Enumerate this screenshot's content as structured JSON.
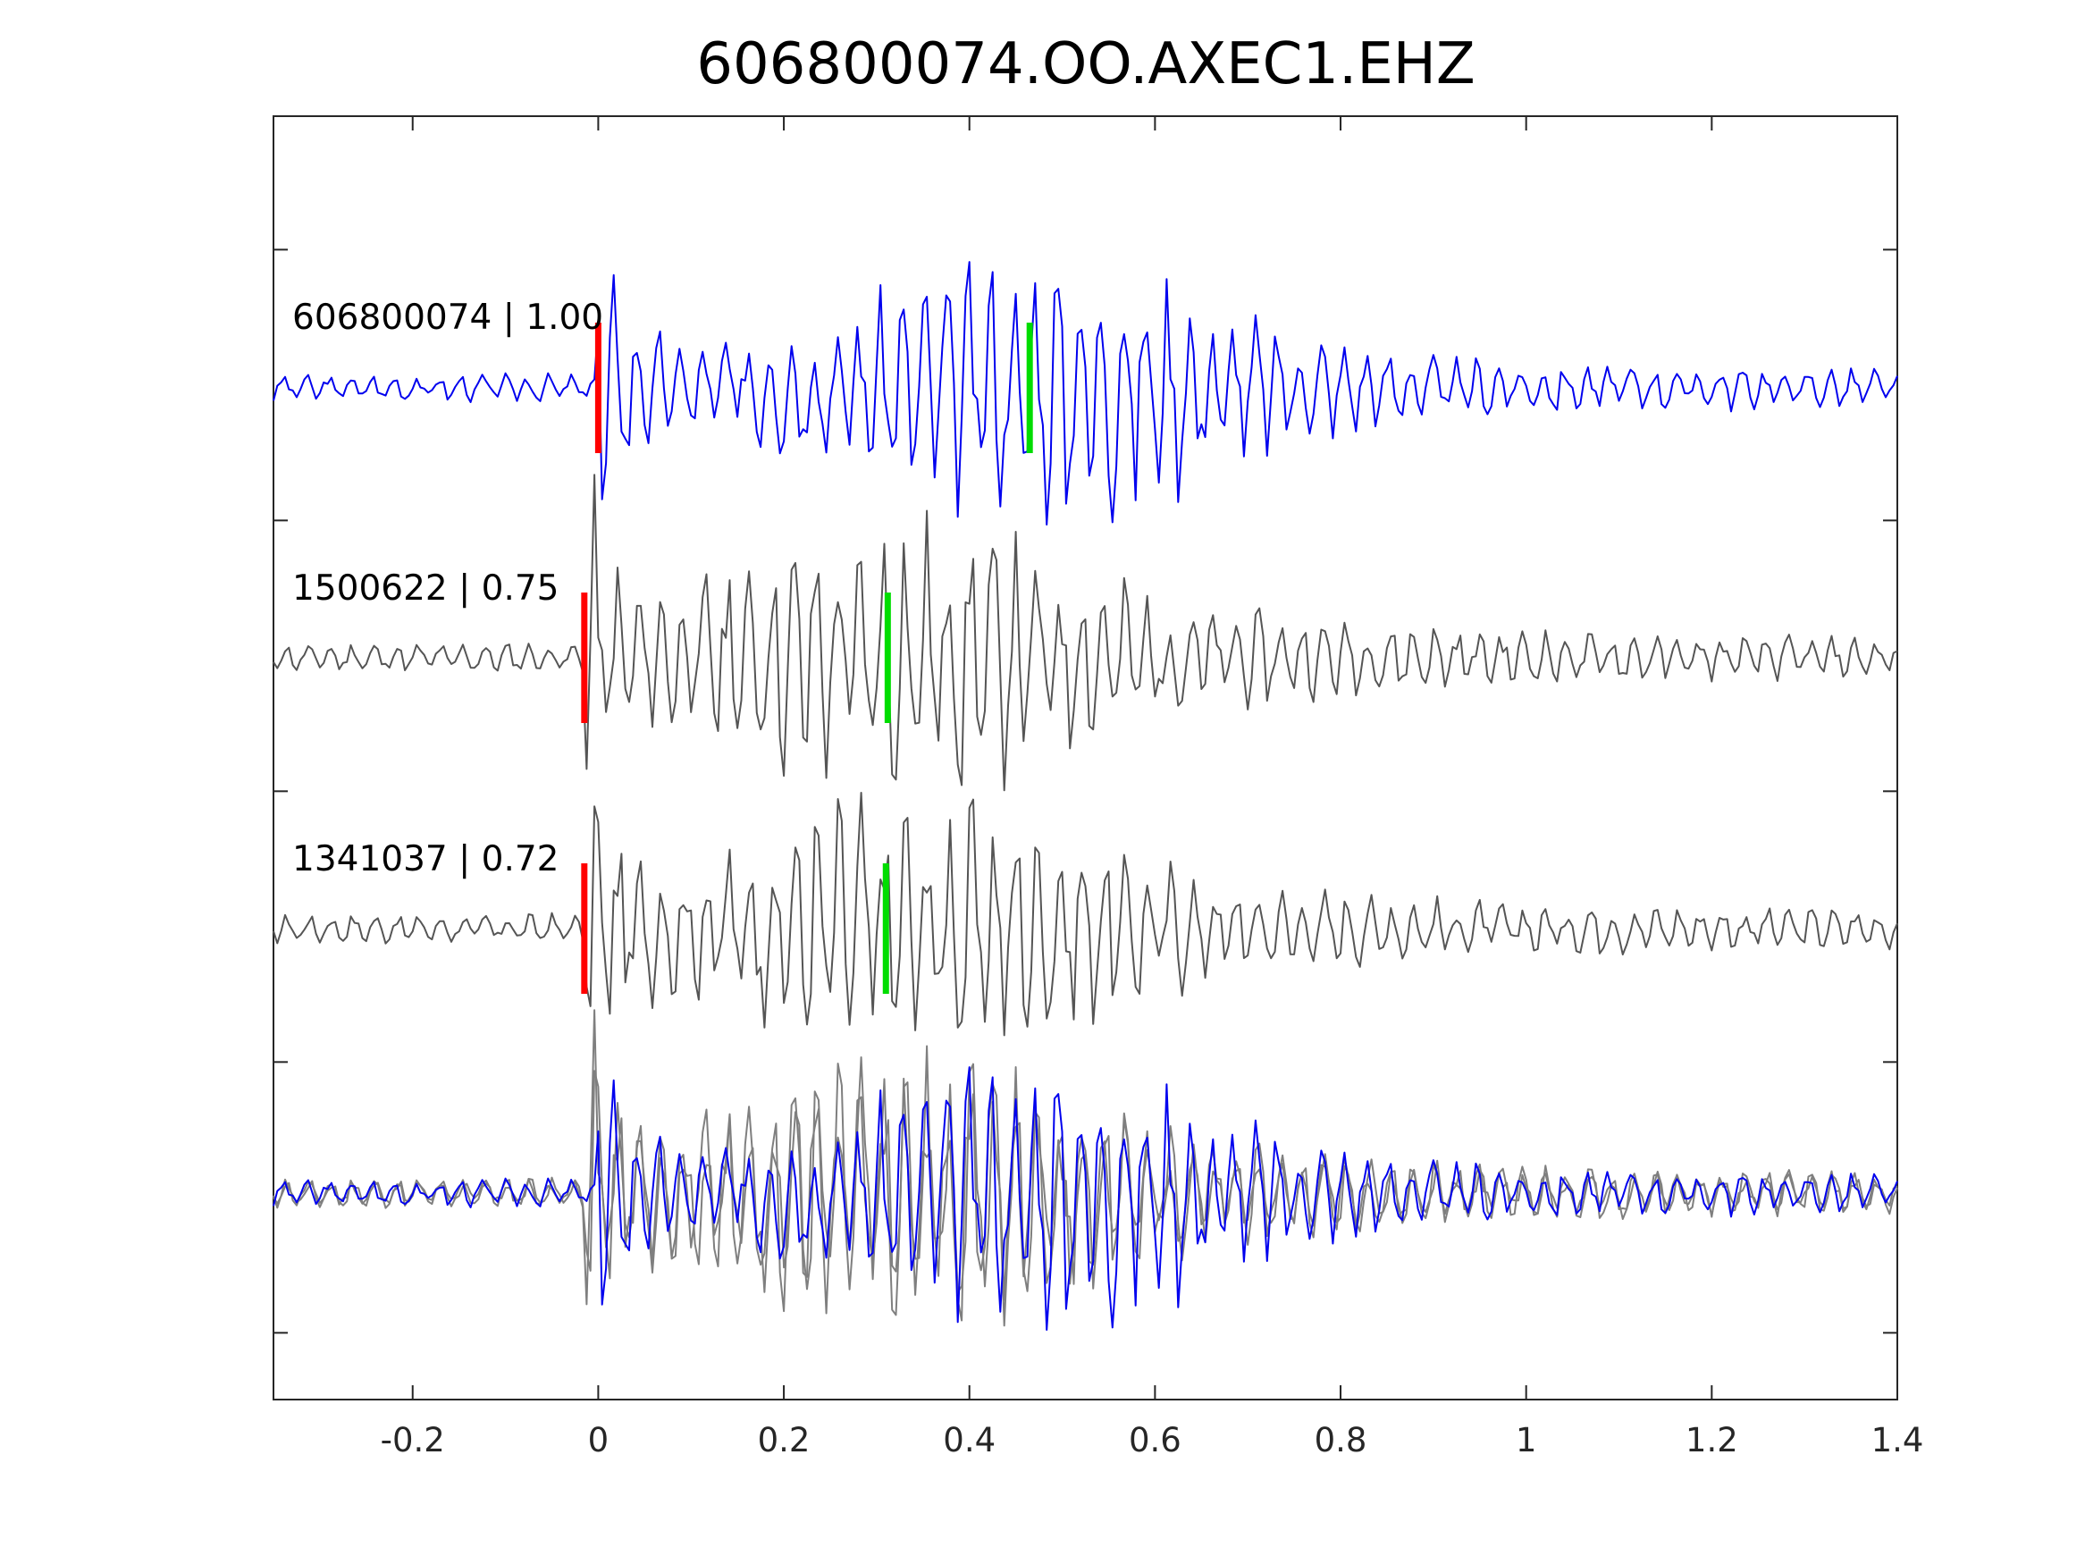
{
  "chart_data": {
    "type": "line",
    "title": "606800074.OO.AXEC1.EHZ",
    "xlabel": "",
    "ylabel": "",
    "xlim": [
      -0.35,
      1.4
    ],
    "xticks": [
      -0.2,
      0,
      0.2,
      0.4,
      0.6,
      0.8,
      1,
      1.2,
      1.4
    ],
    "xtick_labels": [
      "-0.2",
      "0",
      "0.2",
      "0.4",
      "0.6",
      "0.8",
      "1",
      "1.2",
      "1.4"
    ],
    "ylim": [
      0,
      1
    ],
    "grid": false,
    "colors": {
      "primary_trace": "#0000ee",
      "correlated_trace": "#555555",
      "overlay_trace": "#7f7f7f",
      "p_pick": "#ff0000",
      "s_pick": "#00dd00",
      "axes": "#262626"
    },
    "traces": [
      {
        "label": "606800074 | 1.00",
        "event_id": "606800074",
        "correlation": 1.0,
        "color_key": "primary_trace",
        "p_time": 0.0,
        "s_time": 0.465,
        "gain": 1.0,
        "seed": 3
      },
      {
        "label": "1500622 | 0.75",
        "event_id": "1500622",
        "correlation": 0.75,
        "color_key": "correlated_trace",
        "p_time": -0.015,
        "s_time": 0.312,
        "gain": 1.05,
        "seed": 11
      },
      {
        "label": "1341037 | 0.72",
        "event_id": "1341037",
        "correlation": 0.72,
        "color_key": "correlated_trace",
        "p_time": -0.015,
        "s_time": 0.31,
        "gain": 1.05,
        "seed": 17
      }
    ],
    "overlay": {
      "description_keys": [
        "1500622",
        "1341037",
        "606800074"
      ]
    }
  }
}
